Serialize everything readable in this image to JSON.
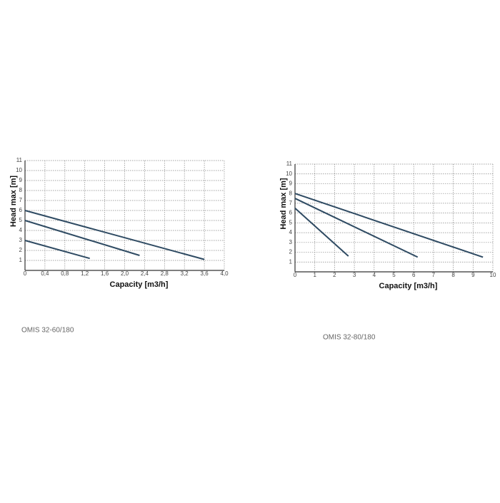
{
  "chart_data": [
    {
      "type": "line",
      "caption": "OMIS 32-60/180",
      "xlabel": "Capacity [m3/h]",
      "ylabel": "Head max [m]",
      "xlim": [
        0,
        4
      ],
      "ylim": [
        0,
        11
      ],
      "xticks": [
        0,
        {
          "value": 0.4,
          "label": "0,4"
        },
        {
          "value": 0.8,
          "label": "0,8"
        },
        {
          "value": 1.2,
          "label": "1,2"
        },
        {
          "value": 1.6,
          "label": "1,6"
        },
        {
          "value": 2.0,
          "label": "2,0"
        },
        {
          "value": 2.4,
          "label": "2,4"
        },
        {
          "value": 2.8,
          "label": "2,8"
        },
        {
          "value": 3.2,
          "label": "3,2"
        },
        {
          "value": 3.6,
          "label": "3,6"
        },
        {
          "value": 4.0,
          "label": "4,0"
        }
      ],
      "yticks": [
        1,
        2,
        3,
        4,
        5,
        6,
        7,
        8,
        9,
        10,
        11
      ],
      "grid": true,
      "series": [
        {
          "color": "#2f4b63",
          "x": [
            0,
            3.6
          ],
          "values": [
            6,
            1.1
          ]
        },
        {
          "color": "#2f4b63",
          "x": [
            0,
            2.3
          ],
          "values": [
            5,
            1.5
          ]
        },
        {
          "color": "#2f4b63",
          "x": [
            0,
            1.3
          ],
          "values": [
            3,
            1.2
          ]
        }
      ]
    },
    {
      "type": "line",
      "caption": "OMIS 32-80/180",
      "xlabel": "Capacity [m3/h]",
      "ylabel": "Head max [m]",
      "xlim": [
        0,
        10
      ],
      "ylim": [
        0,
        11
      ],
      "xticks": [
        0,
        1,
        2,
        3,
        4,
        5,
        6,
        7,
        8,
        9,
        10
      ],
      "yticks": [
        1,
        2,
        3,
        4,
        5,
        6,
        7,
        8,
        9,
        10,
        11
      ],
      "grid": true,
      "series": [
        {
          "color": "#2f4b63",
          "x": [
            0,
            9.5
          ],
          "values": [
            8,
            1.5
          ]
        },
        {
          "color": "#2f4b63",
          "x": [
            0,
            6.2
          ],
          "values": [
            7.5,
            1.5
          ]
        },
        {
          "color": "#2f4b63",
          "x": [
            0,
            2.7
          ],
          "values": [
            6.5,
            1.6
          ]
        }
      ]
    }
  ]
}
